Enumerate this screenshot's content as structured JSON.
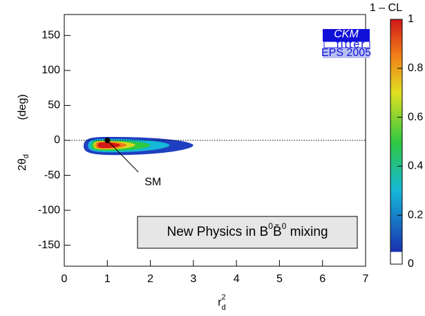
{
  "chart_data": {
    "type": "contour",
    "xlabel": {
      "main": "r",
      "sup": "2",
      "sub": "d"
    },
    "ylabel": {
      "main": "2θ",
      "sub": "d",
      "unit": "(deg)"
    },
    "xlim": [
      0,
      7
    ],
    "xticks": [
      0,
      1,
      2,
      3,
      4,
      5,
      6,
      7
    ],
    "ylim": [
      -180,
      180
    ],
    "yticks": [
      -150,
      -100,
      -50,
      0,
      50,
      100,
      150
    ],
    "hline": 0,
    "contours": [
      {
        "level": 0.05,
        "color": "#1f3fc0",
        "x": [
          0.45,
          3.0
        ],
        "y": [
          -21,
          5
        ]
      },
      {
        "level": 0.2,
        "color": "#15b8d8",
        "x": [
          0.55,
          2.45
        ],
        "y": [
          -17,
          2
        ]
      },
      {
        "level": 0.4,
        "color": "#2ec840",
        "x": [
          0.62,
          2.0
        ],
        "y": [
          -15,
          0
        ]
      },
      {
        "level": 0.6,
        "color": "#d8d820",
        "x": [
          0.68,
          1.65
        ],
        "y": [
          -13,
          -1
        ]
      },
      {
        "level": 0.8,
        "color": "#f07818",
        "x": [
          0.72,
          1.45
        ],
        "y": [
          -12,
          -2
        ]
      },
      {
        "level": 0.9,
        "color": "#d21818",
        "x": [
          0.78,
          1.3
        ],
        "y": [
          -11,
          -3
        ]
      }
    ],
    "point": {
      "label": "SM",
      "x": 1,
      "y": 0
    },
    "colorbar": {
      "label": "1 – CL",
      "lim": [
        0,
        1
      ],
      "ticks": [
        0,
        0.2,
        0.4,
        0.6,
        0.8,
        1
      ],
      "stops": [
        {
          "at": 0.05,
          "color": "#1a30b0"
        },
        {
          "at": 0.3,
          "color": "#15b8d8"
        },
        {
          "at": 0.5,
          "color": "#30c840"
        },
        {
          "at": 0.7,
          "color": "#e0e020"
        },
        {
          "at": 0.85,
          "color": "#f08018"
        },
        {
          "at": 1,
          "color": "#d01818"
        }
      ]
    },
    "annotation": {
      "text": "New Physics in B",
      "sup1": "0",
      "bar": "B̄",
      "sup2": "0",
      "rest": " mixing"
    },
    "logo": {
      "title": "CKM",
      "subtitle": "fitter",
      "event": "EPS 2005"
    }
  }
}
